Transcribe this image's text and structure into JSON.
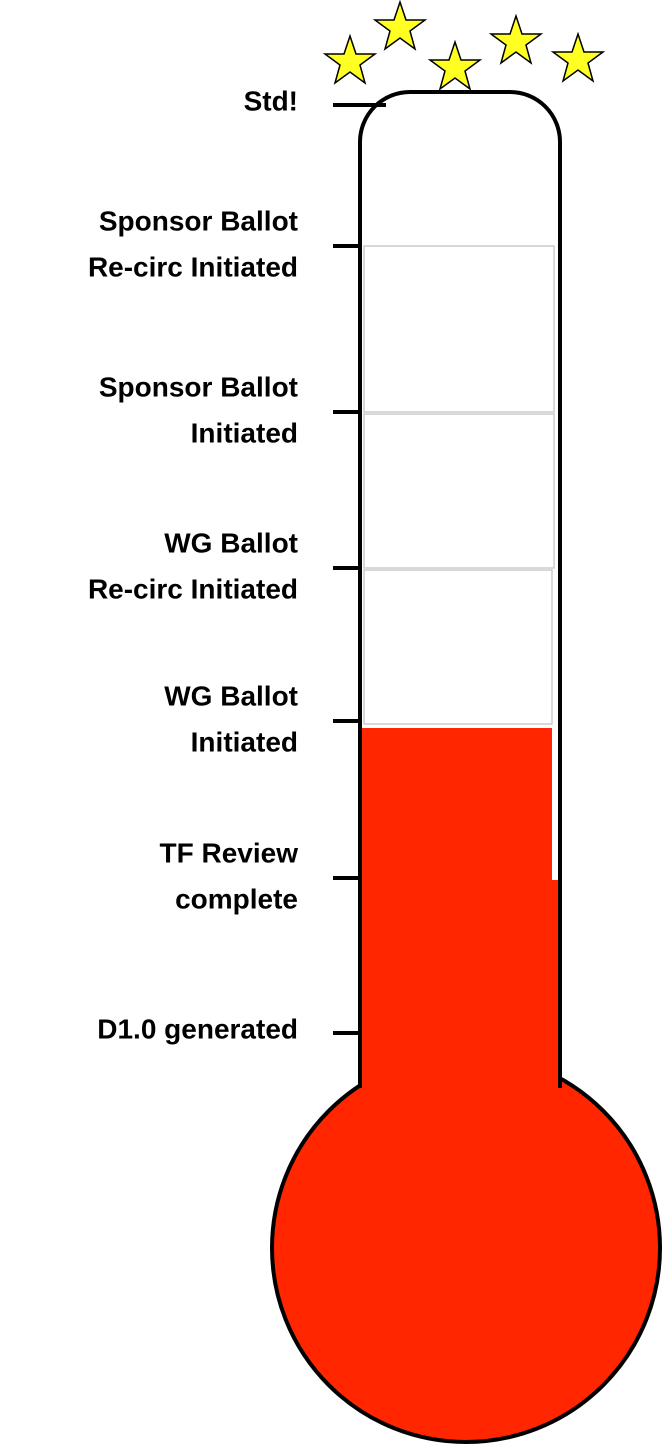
{
  "milestones": [
    {
      "label": [
        "Std!"
      ]
    },
    {
      "label": [
        "Sponsor Ballot",
        "Re-circ Initiated"
      ]
    },
    {
      "label": [
        "Sponsor Ballot",
        "Initiated"
      ]
    },
    {
      "label": [
        "WG Ballot",
        "Re-circ Initiated"
      ]
    },
    {
      "label": [
        "WG Ballot",
        "Initiated"
      ]
    },
    {
      "label": [
        "TF Review",
        "complete"
      ]
    },
    {
      "label": [
        "D1.0 generated"
      ]
    }
  ]
}
